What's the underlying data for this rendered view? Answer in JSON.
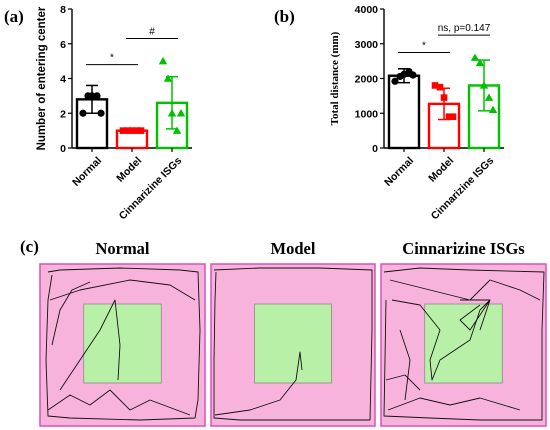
{
  "panels": {
    "a": {
      "letter": "(a)"
    },
    "b": {
      "letter": "(b)"
    },
    "c": {
      "letter": "(c)"
    }
  },
  "colors": {
    "normal": "#000000",
    "model": "#ff0000",
    "isg": "#00c000",
    "arena": "#f7b3dc",
    "arena_border": "#d653b8",
    "center": "#b9f0a8",
    "track": "#111111"
  },
  "chart_data": [
    {
      "type": "bar",
      "panel": "a",
      "categories": [
        "Normal",
        "Model",
        "Cinnarizine ISGs"
      ],
      "ylabel": "Number of entering center",
      "xlabel": "",
      "ylim": [
        0,
        8
      ],
      "yticks": [
        0,
        2,
        4,
        6,
        8
      ],
      "series": [
        {
          "values": [
            2.8,
            1.0,
            2.6
          ],
          "errors": [
            0.8,
            0.1,
            1.5
          ],
          "points": [
            [
              2,
              3,
              3,
              3,
              2
            ],
            [
              1,
              1,
              1,
              1,
              1
            ],
            [
              5,
              4,
              2,
              1,
              2
            ]
          ],
          "markers": [
            "circle",
            "square",
            "triangle"
          ]
        }
      ],
      "annotations": [
        {
          "text": "*",
          "from": 0,
          "to": 1,
          "y": 4.8
        },
        {
          "text": "#",
          "from": 1,
          "to": 2,
          "y": 6.3
        }
      ]
    },
    {
      "type": "bar",
      "panel": "b",
      "categories": [
        "Normal",
        "Model",
        "Cinnarizine ISGs"
      ],
      "ylabel": "Total distance (mm)",
      "xlabel": "",
      "ylim": [
        0,
        4000
      ],
      "yticks": [
        0,
        1000,
        2000,
        3000,
        4000
      ],
      "series": [
        {
          "values": [
            2080,
            1270,
            1800
          ],
          "errors": [
            200,
            450,
            730
          ],
          "points": [
            [
              1920,
              2060,
              2120,
              2200,
              2100
            ],
            [
              1800,
              1750,
              1450,
              900,
              900
            ],
            [
              2600,
              2450,
              1800,
              1450,
              1100
            ]
          ],
          "markers": [
            "circle",
            "square",
            "triangle"
          ]
        }
      ],
      "annotations": [
        {
          "text": "*",
          "from": 0,
          "to": 1,
          "y": 2750
        },
        {
          "text": "ns, p=0.147",
          "from": 1,
          "to": 2,
          "y": 3250
        }
      ]
    }
  ],
  "arenas": [
    {
      "title": "Normal"
    },
    {
      "title": "Model"
    },
    {
      "title": "Cinnarizine ISGs"
    }
  ]
}
